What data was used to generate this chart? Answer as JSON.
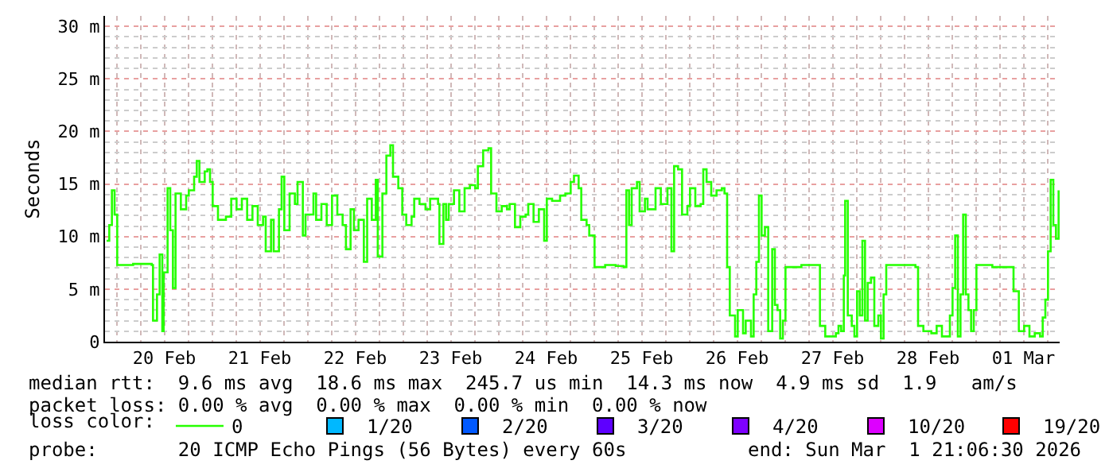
{
  "chart_data": {
    "type": "step",
    "ylabel": "Seconds",
    "legend_title": "loss color:",
    "legend": "bottom",
    "grid": true,
    "marker": "none",
    "line_style": "solid",
    "xlim": [
      "2026-02-19T21:06",
      "2026-03-01T21:06"
    ],
    "xticks": [
      {
        "value": "2026-02-20T12:00",
        "label": "20 Feb"
      },
      {
        "value": "2026-02-21T12:00",
        "label": "21 Feb"
      },
      {
        "value": "2026-02-22T12:00",
        "label": "22 Feb"
      },
      {
        "value": "2026-02-23T12:00",
        "label": "23 Feb"
      },
      {
        "value": "2026-02-24T12:00",
        "label": "24 Feb"
      },
      {
        "value": "2026-02-25T12:00",
        "label": "25 Feb"
      },
      {
        "value": "2026-02-26T12:00",
        "label": "26 Feb"
      },
      {
        "value": "2026-02-27T12:00",
        "label": "27 Feb"
      },
      {
        "value": "2026-02-28T12:00",
        "label": "28 Feb"
      },
      {
        "value": "2026-03-01T12:00",
        "label": "01 Mar"
      }
    ],
    "ylim": [
      0,
      31
    ],
    "yticks": [
      0,
      {
        "value": 5,
        "label": "5 m"
      },
      {
        "value": 10,
        "label": "10 m"
      },
      {
        "value": 15,
        "label": "15 m"
      },
      {
        "value": 20,
        "label": "20 m"
      },
      {
        "value": 25,
        "label": "25 m"
      },
      {
        "value": 30,
        "label": "30 m"
      }
    ],
    "annotations": [
      "median rtt:  9.6 ms avg  18.6 ms max  245.7 us min  14.3 ms now  4.9 ms sd  1.9   am/s",
      "packet loss: 0.00 % avg  0.00 % max  0.00 % min  0.00 % now",
      "probe:       20 ICMP Echo Pings (56 Bytes) every 60s",
      "end: Sun Mar  1 21:06:30 2026"
    ],
    "series": [
      {
        "name": "0",
        "color": "#26ff00",
        "x": [
          "2026-02-19T21:30",
          "2026-02-19T22:10",
          "2026-02-19T22:50",
          "2026-02-19T23:30",
          "2026-02-20T00:10",
          "2026-02-20T04:10",
          "2026-02-20T08:50",
          "2026-02-20T09:10",
          "2026-02-20T10:10",
          "2026-02-20T10:50",
          "2026-02-20T11:30",
          "2026-02-20T11:50",
          "2026-02-20T12:50",
          "2026-02-20T13:30",
          "2026-02-20T14:10",
          "2026-02-20T14:50",
          "2026-02-20T16:10",
          "2026-02-20T17:30",
          "2026-02-20T18:10",
          "2026-02-20T19:30",
          "2026-02-20T20:10",
          "2026-02-20T20:50",
          "2026-02-20T22:10",
          "2026-02-20T22:50",
          "2026-02-20T23:30",
          "2026-02-21T00:10",
          "2026-02-21T01:30",
          "2026-02-21T03:30",
          "2026-02-21T04:50",
          "2026-02-21T06:10",
          "2026-02-21T07:30",
          "2026-02-21T08:50",
          "2026-02-21T10:10",
          "2026-02-21T11:30",
          "2026-02-21T12:50",
          "2026-02-21T13:30",
          "2026-02-21T14:50",
          "2026-02-21T15:30",
          "2026-02-21T16:50",
          "2026-02-21T17:30",
          "2026-02-21T18:10",
          "2026-02-21T19:30",
          "2026-02-21T20:50",
          "2026-02-21T21:30",
          "2026-02-21T22:50",
          "2026-02-21T23:30",
          "2026-02-22T01:30",
          "2026-02-22T02:10",
          "2026-02-22T03:30",
          "2026-02-22T04:50",
          "2026-02-22T06:10",
          "2026-02-22T07:30",
          "2026-02-22T08:50",
          "2026-02-22T09:40",
          "2026-02-22T10:50",
          "2026-02-22T11:40",
          "2026-02-22T12:50",
          "2026-02-22T14:10",
          "2026-02-22T15:00",
          "2026-02-22T16:10",
          "2026-02-22T17:10",
          "2026-02-22T17:40",
          "2026-02-22T18:50",
          "2026-02-22T19:50",
          "2026-02-22T20:50",
          "2026-02-22T21:30",
          "2026-02-22T22:50",
          "2026-02-22T23:50",
          "2026-02-23T00:50",
          "2026-02-23T02:10",
          "2026-02-23T02:50",
          "2026-02-23T04:10",
          "2026-02-23T05:40",
          "2026-02-23T06:50",
          "2026-02-23T08:50",
          "2026-02-23T09:10",
          "2026-02-23T10:10",
          "2026-02-23T10:50",
          "2026-02-23T11:30",
          "2026-02-23T12:50",
          "2026-02-23T14:10",
          "2026-02-23T15:30",
          "2026-02-23T16:50",
          "2026-02-23T18:10",
          "2026-02-23T18:50",
          "2026-02-23T20:10",
          "2026-02-23T21:30",
          "2026-02-23T22:10",
          "2026-02-23T23:30",
          "2026-02-24T00:50",
          "2026-02-24T02:10",
          "2026-02-24T02:50",
          "2026-02-24T04:10",
          "2026-02-24T05:30",
          "2026-02-24T06:50",
          "2026-02-24T07:30",
          "2026-02-24T08:50",
          "2026-02-24T10:10",
          "2026-02-24T11:30",
          "2026-02-24T12:10",
          "2026-02-24T13:30",
          "2026-02-24T15:30",
          "2026-02-24T16:50",
          "2026-02-24T18:10",
          "2026-02-24T19:00",
          "2026-02-24T20:10",
          "2026-02-24T20:50",
          "2026-02-24T22:10",
          "2026-02-24T22:50",
          "2026-02-25T00:10",
          "2026-02-25T02:50",
          "2026-02-25T05:30",
          "2026-02-25T07:30",
          "2026-02-25T08:10",
          "2026-02-25T08:50",
          "2026-02-25T09:30",
          "2026-02-25T10:50",
          "2026-02-25T11:30",
          "2026-02-25T12:50",
          "2026-02-25T13:30",
          "2026-02-25T15:30",
          "2026-02-25T16:50",
          "2026-02-25T18:30",
          "2026-02-25T19:30",
          "2026-02-25T20:10",
          "2026-02-25T21:10",
          "2026-02-25T22:10",
          "2026-02-25T23:30",
          "2026-02-26T00:10",
          "2026-02-26T01:30",
          "2026-02-26T02:50",
          "2026-02-26T03:30",
          "2026-02-26T04:20",
          "2026-02-26T05:30",
          "2026-02-26T06:50",
          "2026-02-26T08:10",
          "2026-02-26T08:50",
          "2026-02-26T09:30",
          "2026-02-26T10:10",
          "2026-02-26T11:30",
          "2026-02-26T12:10",
          "2026-02-26T13:30",
          "2026-02-26T14:10",
          "2026-02-26T15:30",
          "2026-02-26T16:10",
          "2026-02-26T16:50",
          "2026-02-26T17:30",
          "2026-02-26T18:10",
          "2026-02-26T19:00",
          "2026-02-26T19:50",
          "2026-02-26T20:50",
          "2026-02-26T21:30",
          "2026-02-26T22:10",
          "2026-02-26T22:50",
          "2026-02-26T23:30",
          "2026-02-27T00:10",
          "2026-02-27T04:10",
          "2026-02-27T08:10",
          "2026-02-27T08:50",
          "2026-02-27T10:10",
          "2026-02-27T12:50",
          "2026-02-27T13:30",
          "2026-02-27T14:10",
          "2026-02-27T14:50",
          "2026-02-27T15:10",
          "2026-02-27T15:50",
          "2026-02-27T16:50",
          "2026-02-27T17:30",
          "2026-02-27T18:10",
          "2026-02-27T18:50",
          "2026-02-27T19:30",
          "2026-02-27T20:10",
          "2026-02-27T20:50",
          "2026-02-27T21:40",
          "2026-02-27T22:30",
          "2026-02-27T23:30",
          "2026-02-28T00:10",
          "2026-02-28T00:50",
          "2026-02-28T01:30",
          "2026-02-28T05:30",
          "2026-02-28T08:50",
          "2026-02-28T09:30",
          "2026-02-28T10:50",
          "2026-02-28T12:50",
          "2026-02-28T14:10",
          "2026-02-28T15:30",
          "2026-02-28T17:30",
          "2026-02-28T18:10",
          "2026-02-28T18:50",
          "2026-02-28T19:30",
          "2026-02-28T20:10",
          "2026-02-28T20:50",
          "2026-02-28T21:30",
          "2026-02-28T22:10",
          "2026-02-28T22:50",
          "2026-02-28T23:30",
          "2026-03-01T00:10",
          "2026-03-01T04:10",
          "2026-03-01T08:10",
          "2026-03-01T09:30",
          "2026-03-01T10:50",
          "2026-03-01T12:10",
          "2026-03-01T13:30",
          "2026-03-01T14:50",
          "2026-03-01T16:10",
          "2026-03-01T16:50",
          "2026-03-01T17:30",
          "2026-03-01T18:10",
          "2026-03-01T18:50",
          "2026-03-01T19:30",
          "2026-03-01T20:10",
          "2026-03-01T20:50"
        ],
        "values": [
          9.6,
          11.1,
          14.4,
          12.1,
          7.3,
          7.4,
          7.3,
          2.0,
          4.5,
          8.3,
          1.0,
          6.6,
          14.6,
          10.6,
          5.1,
          14.1,
          12.6,
          13.9,
          14.4,
          15.7,
          17.2,
          15.2,
          16.2,
          16.4,
          15.2,
          12.9,
          11.6,
          11.9,
          13.6,
          12.6,
          13.6,
          11.6,
          12.9,
          11.1,
          11.9,
          8.6,
          11.6,
          8.6,
          12.6,
          15.7,
          10.6,
          14.1,
          13.1,
          15.2,
          10.1,
          12.1,
          14.1,
          11.6,
          13.1,
          11.1,
          13.9,
          12.1,
          11.1,
          8.8,
          12.6,
          10.6,
          11.6,
          7.6,
          13.6,
          11.6,
          15.4,
          8.1,
          14.1,
          17.7,
          18.7,
          15.7,
          14.6,
          12.1,
          11.1,
          11.9,
          13.6,
          13.1,
          12.6,
          13.6,
          13.1,
          9.3,
          13.1,
          11.6,
          13.1,
          14.4,
          12.4,
          14.6,
          14.9,
          14.6,
          16.7,
          18.2,
          18.4,
          14.1,
          12.4,
          12.9,
          12.6,
          13.1,
          10.9,
          11.9,
          12.1,
          13.1,
          11.4,
          12.6,
          9.6,
          13.6,
          13.4,
          13.9,
          14.1,
          15.2,
          15.8,
          14.6,
          11.6,
          11.1,
          10.1,
          7.1,
          7.3,
          7.2,
          7.1,
          14.4,
          11.1,
          14.6,
          15.2,
          12.4,
          13.6,
          12.6,
          14.6,
          13.1,
          14.6,
          8.6,
          16.7,
          16.4,
          12.1,
          12.9,
          14.6,
          12.9,
          13.1,
          16.4,
          15.2,
          13.9,
          14.4,
          14.6,
          14.1,
          7.1,
          2.5,
          0.5,
          3.0,
          0.8,
          2.0,
          0.5,
          4.5,
          7.6,
          13.9,
          10.1,
          10.9,
          1.0,
          8.8,
          3.5,
          3.0,
          0.3,
          2.0,
          7.1,
          7.3,
          7.3,
          1.5,
          0.5,
          0.8,
          1.5,
          1.0,
          6.3,
          13.4,
          2.5,
          1.5,
          0.5,
          4.8,
          2.5,
          9.6,
          2.0,
          5.6,
          6.1,
          1.5,
          2.5,
          0.3,
          4.5,
          7.3,
          7.3,
          7.1,
          1.5,
          1.0,
          0.8,
          1.5,
          0.5,
          2.5,
          5.1,
          10.1,
          0.5,
          4.5,
          12.1,
          4.5,
          3.0,
          1.0,
          3.0,
          7.3,
          7.1,
          7.1,
          4.8,
          1.0,
          1.5,
          0.5,
          0.8,
          0.5,
          2.3,
          4.0,
          8.6,
          15.4,
          11.1,
          9.8,
          14.4
        ]
      },
      {
        "name": "1/20",
        "color": "#00b8ff",
        "type": "scatter",
        "marker": "square",
        "values": [
          null
        ]
      },
      {
        "name": "2/20",
        "color": "#0059ff",
        "type": "scatter",
        "marker": "square",
        "values": [
          null
        ]
      },
      {
        "name": "3/20",
        "color": "#5e00ff",
        "type": "scatter",
        "marker": "square",
        "values": [
          null
        ]
      },
      {
        "name": "4/20",
        "color": "#7e00ff",
        "type": "scatter",
        "marker": "square",
        "values": [
          null
        ]
      },
      {
        "name": "10/20",
        "color": "#dd00ff",
        "type": "scatter",
        "marker": "square",
        "values": [
          null
        ]
      },
      {
        "name": "19/20",
        "color": "#ff0000",
        "type": "scatter",
        "marker": "square",
        "values": [
          null
        ]
      }
    ]
  }
}
